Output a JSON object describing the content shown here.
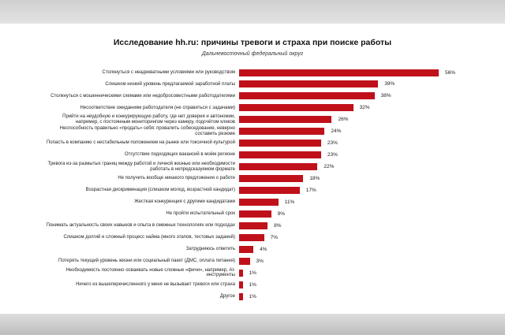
{
  "chart_data": {
    "type": "bar",
    "orientation": "horizontal",
    "title": "Исследование hh.ru: причины тревоги и страха при поиске работы",
    "subtitle": "Дальневосточный федеральный округ",
    "color": "#c0111b",
    "categories": [
      "Столкнуться с неадекватными условиями или руководством",
      "Слишком низкий уровень предлагаемой заработной платы",
      "Столкнуться с мошенническими схемами или недобросовестными работодателями",
      "Несоответствие ожиданиям работодателя (не справиться с задачами)",
      "Прийти на неудобную и конкурирующую работу, где нет доверия и автономии, например, с постоянным мониторингом через камеру, подсчётом кликов",
      "Неспособность правильно «продать» себя: провалить собеседование, неверно составить резюме",
      "Попасть в компанию с нестабильным положением на рынке или токсичной культурой",
      "Отсутствие подходящих вакансий в моём регионе",
      "Тревога из-за размытых границ между работой и личной жизнью или необходимости работать в непредсказуемом формате",
      "Не получить вообще никакого предложения о работе",
      "Возрастная дискриминация (слишком молод, возрастной кандидат)",
      "Жесткая конкуренция с другими кандидатами",
      "Не пройти испытательный срок",
      "Понимать актуальность своих навыков и опыта в смежных технологиях или подходах",
      "Слишком долгий и сложный процесс найма (много этапов, тестовых заданий)",
      "Затрудняюсь ответить",
      "Потерять текущий уровень жизни или социальный пакет (ДМС, оплата питания)",
      "Необходимость постоянно осваивать новые сложные «фичи», например, AI-инструменты",
      "Ничего из вышеперечисленного у меня не вызывает тревоги или страха",
      "Другое"
    ],
    "values": [
      56,
      39,
      38,
      32,
      26,
      24,
      23,
      23,
      22,
      18,
      17,
      11,
      9,
      8,
      7,
      4,
      3,
      1,
      1,
      1
    ],
    "value_labels": [
      "56%",
      "39%",
      "38%",
      "32%",
      "26%",
      "24%",
      "23%",
      "23%",
      "22%",
      "18%",
      "17%",
      "11%",
      "9%",
      "8%",
      "7%",
      "4%",
      "3%",
      "1%",
      "1%",
      "1%"
    ]
  }
}
